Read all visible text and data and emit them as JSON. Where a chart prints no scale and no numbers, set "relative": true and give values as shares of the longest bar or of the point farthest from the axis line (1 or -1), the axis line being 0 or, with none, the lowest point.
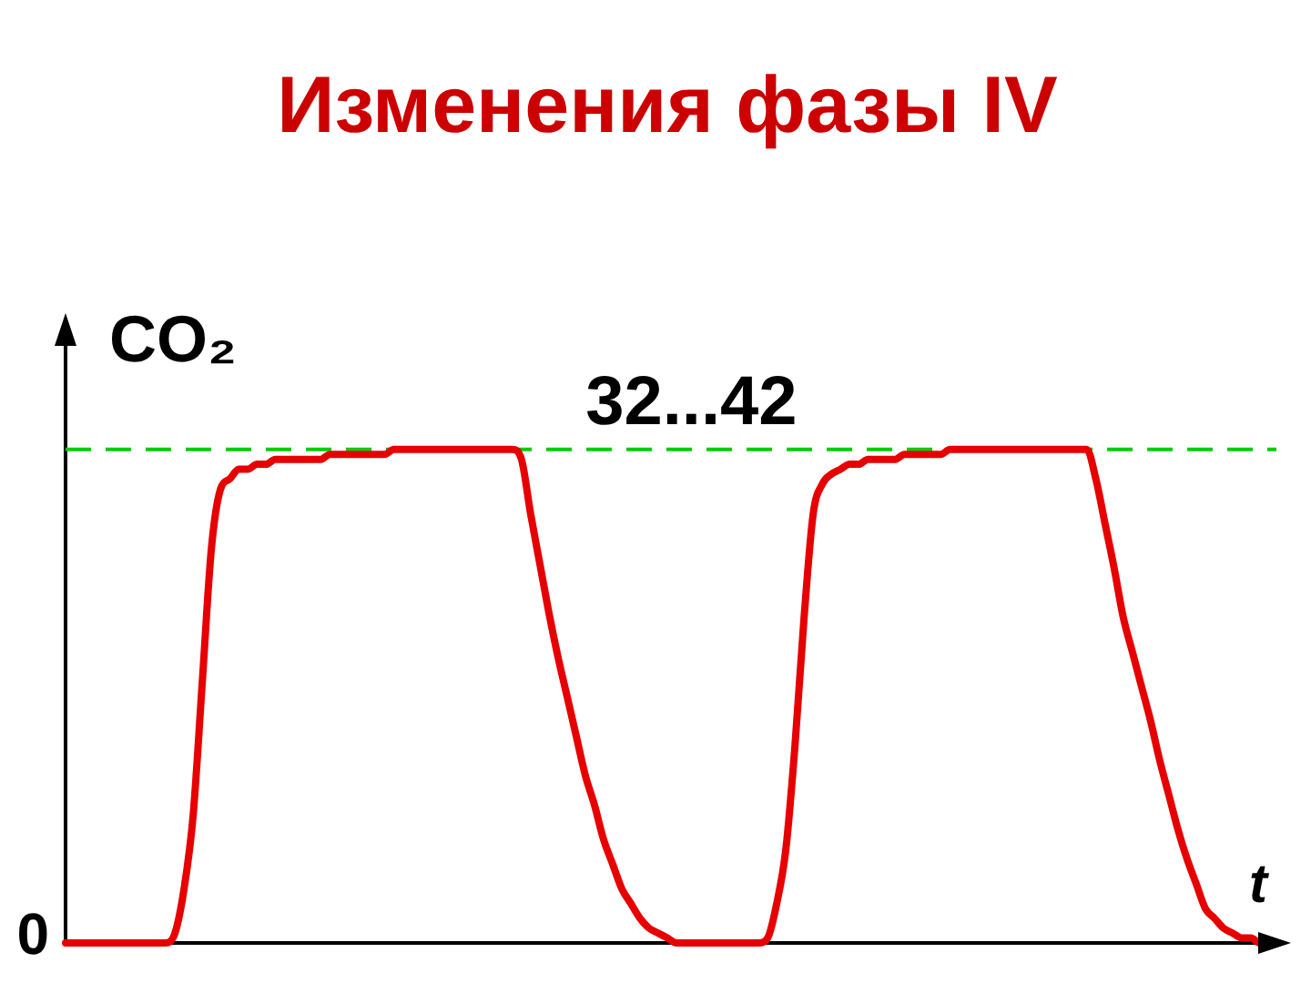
{
  "chart_data": {
    "type": "line",
    "title": "Изменения фазы IV",
    "ylabel": "CO₂",
    "xlabel": "t",
    "relative": true,
    "categories": [
      null,
      null,
      null,
      null,
      null,
      null,
      null,
      null,
      null,
      null,
      null,
      null,
      null,
      null,
      null,
      null,
      null,
      null,
      null,
      null,
      null,
      null,
      null,
      null,
      null,
      null,
      null,
      null,
      null,
      null,
      null,
      null,
      null,
      null,
      null,
      null,
      null,
      null,
      null,
      null,
      null,
      null,
      null,
      null,
      null,
      null,
      null,
      null,
      null,
      null,
      null,
      null,
      null,
      null,
      null,
      null,
      null,
      null,
      null,
      null,
      null,
      null,
      null,
      null,
      null,
      null,
      null,
      null,
      null,
      null,
      null,
      null,
      null,
      null,
      null,
      null,
      null,
      null,
      null,
      null,
      null,
      null,
      null,
      null,
      null,
      null,
      null,
      null,
      null,
      null,
      null,
      null,
      null,
      null,
      null,
      null,
      null,
      null,
      null,
      null,
      null,
      null,
      null,
      null,
      null,
      null,
      null,
      null,
      null,
      null,
      null,
      null,
      null,
      null,
      null,
      null,
      null,
      null,
      null,
      null,
      null,
      null,
      null,
      null,
      null,
      null,
      null,
      null,
      null,
      null,
      null,
      null,
      null
    ],
    "series": [
      {
        "color": "#e60000",
        "values": [
          0,
          0,
          0,
          0,
          0,
          0,
          0,
          0,
          0,
          0,
          0,
          0,
          0.02,
          0.11,
          0.26,
          0.53,
          0.8,
          0.92,
          0.94,
          0.96,
          0.96,
          0.97,
          0.97,
          0.98,
          0.98,
          0.98,
          0.98,
          0.98,
          0.98,
          0.99,
          0.99,
          0.99,
          0.99,
          0.99,
          0.99,
          0.99,
          1,
          1,
          1,
          1,
          1,
          1,
          1,
          1,
          1,
          1,
          1,
          1,
          1,
          1,
          0.98,
          0.87,
          0.77,
          0.67,
          0.58,
          0.5,
          0.42,
          0.34,
          0.28,
          0.21,
          0.16,
          0.11,
          0.08,
          0.05,
          0.03,
          0.02,
          0.01,
          0,
          0,
          0,
          0,
          0,
          0,
          0,
          0,
          0,
          0,
          0.01,
          0.08,
          0.19,
          0.4,
          0.66,
          0.87,
          0.93,
          0.95,
          0.96,
          0.97,
          0.97,
          0.98,
          0.98,
          0.98,
          0.98,
          0.99,
          0.99,
          0.99,
          0.99,
          0.99,
          1,
          1,
          1,
          1,
          1,
          1,
          1,
          1,
          1,
          1,
          1,
          1,
          1,
          1,
          1,
          1,
          0.94,
          0.85,
          0.76,
          0.66,
          0.59,
          0.52,
          0.45,
          0.37,
          0.3,
          0.23,
          0.17,
          0.12,
          0.07,
          0.05,
          0.03,
          0.02,
          0.01,
          0.01,
          0,
          0
        ]
      }
    ],
    "ref_lines": [
      {
        "axis": "y",
        "value": 1,
        "label": "32...42",
        "color": "#00cc00",
        "line_style": "dashed"
      }
    ],
    "annotations": [
      "0"
    ]
  }
}
